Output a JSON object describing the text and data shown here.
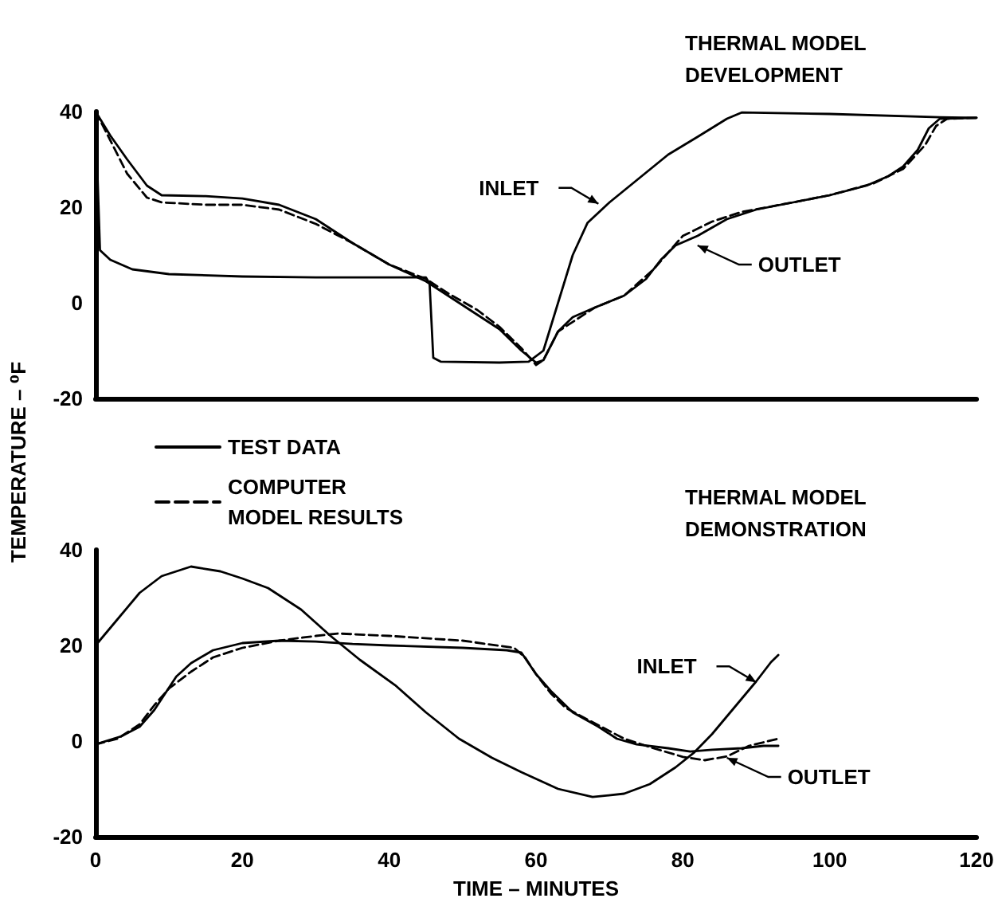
{
  "chart_data": [
    {
      "type": "line",
      "title": "THERMAL MODEL DEVELOPMENT",
      "xlim": [
        0,
        120
      ],
      "xticks": [
        0,
        20,
        40,
        60,
        80,
        100,
        120
      ],
      "ylim": [
        -20,
        40
      ],
      "yticks": [
        -20,
        0,
        20,
        40
      ],
      "tick_labels": "y",
      "grid": false,
      "legend": false,
      "marker": "none",
      "annotations": [
        {
          "text": "INLET",
          "x": 68.5,
          "y": 20.7
        },
        {
          "text": "OUTLET",
          "x": 82,
          "y": 12
        }
      ],
      "series": [
        {
          "color": "#000000",
          "line_style": "solid",
          "x": [
            0,
            0.3,
            0.6,
            2,
            5,
            10,
            20,
            30,
            45,
            45.5,
            46,
            47,
            55,
            59,
            61,
            63,
            65,
            67,
            70,
            74,
            78,
            82,
            86,
            88,
            100,
            115,
            120
          ],
          "values": [
            40,
            25,
            11,
            9,
            7,
            6,
            5.5,
            5.3,
            5.3,
            4,
            -11.5,
            -12.3,
            -12.5,
            -12.3,
            -10,
            0,
            10,
            16.7,
            21,
            26,
            31,
            34.7,
            38.5,
            39.8,
            39.5,
            38.8,
            38.7
          ]
        },
        {
          "color": "#000000",
          "line_style": "solid",
          "x": [
            0,
            2,
            4.3,
            7,
            9,
            15,
            20,
            25,
            30,
            35,
            40,
            45,
            48,
            52,
            55,
            58,
            60,
            61,
            63,
            65,
            68,
            72,
            75,
            77,
            79,
            82,
            86,
            90,
            95,
            100,
            105,
            108,
            110,
            112,
            113.5,
            115,
            120
          ],
          "values": [
            40,
            35,
            30,
            24.5,
            22.5,
            22.3,
            21.8,
            20.5,
            17.5,
            12.5,
            8,
            4.5,
            1.5,
            -2.5,
            -5.5,
            -10,
            -12.5,
            -12,
            -6,
            -3,
            -1,
            1.5,
            5,
            9,
            12,
            14,
            17.5,
            19.5,
            21,
            22.5,
            24.5,
            26.5,
            28.5,
            32,
            36.5,
            38.5,
            38.7
          ]
        },
        {
          "color": "#000000",
          "line_style": "dashed",
          "x": [
            0,
            2,
            4.3,
            7,
            9,
            15,
            20,
            25,
            30,
            35,
            40,
            45,
            48,
            52,
            55,
            58,
            60,
            61,
            63,
            68,
            72,
            76,
            80,
            84,
            88,
            95,
            100,
            106,
            110,
            113,
            114.5,
            116,
            120
          ],
          "values": [
            40,
            34,
            27,
            22,
            21,
            20.5,
            20.5,
            19.5,
            16.5,
            12.5,
            8,
            5,
            2,
            -1.5,
            -5,
            -9.5,
            -13,
            -12,
            -6,
            -1,
            1.5,
            7,
            14,
            17,
            19,
            21,
            22.5,
            25,
            28,
            33,
            37,
            38.5,
            38.7
          ]
        }
      ]
    },
    {
      "type": "line",
      "title": "THERMAL MODEL DEMONSTRATION",
      "xlabel": "TIME – MINUTES",
      "ylabel": "TEMPERATURE – ⁰F",
      "xlim": [
        0,
        120
      ],
      "xticks": [
        0,
        20,
        40,
        60,
        80,
        100,
        120
      ],
      "ylim": [
        -20,
        40
      ],
      "yticks": [
        -20,
        0,
        20,
        40
      ],
      "grid": false,
      "legend": "top left",
      "marker": "none",
      "annotations": [
        {
          "text": "INLET",
          "x": 90,
          "y": 12.3
        },
        {
          "text": "OUTLET",
          "x": 86,
          "y": -3.5
        }
      ],
      "series": [
        {
          "color": "#000000",
          "line_style": "solid",
          "x": [
            0,
            3,
            6,
            9,
            13,
            17,
            20,
            23.5,
            28,
            32,
            36,
            40.8,
            45,
            49.5,
            54,
            58,
            63,
            67.7,
            72,
            75.5,
            79,
            81.6,
            84,
            87,
            90,
            92,
            93
          ],
          "values": [
            20,
            25.5,
            31,
            34.5,
            36.5,
            35.5,
            34,
            32,
            27.5,
            22,
            17,
            11.7,
            6,
            0.5,
            -3.5,
            -6.5,
            -10,
            -11.7,
            -11,
            -9,
            -5.5,
            -2.3,
            1.5,
            7,
            12.5,
            16.5,
            18
          ]
        },
        {
          "name": "TEST DATA",
          "color": "#000000",
          "line_style": "solid",
          "x": [
            0,
            3.5,
            6,
            8,
            9.5,
            11,
            13,
            16,
            20,
            25,
            30,
            35,
            40,
            50,
            56,
            58,
            60,
            62,
            65,
            68.5,
            71,
            73.7,
            78,
            81,
            84,
            88,
            91,
            93
          ],
          "values": [
            -0.7,
            1,
            3,
            6.5,
            10,
            13.5,
            16.3,
            19,
            20.5,
            21,
            20.8,
            20.3,
            20,
            19.5,
            19,
            18.5,
            14,
            10.5,
            6,
            3,
            0.5,
            -0.7,
            -1.5,
            -2.2,
            -1.8,
            -1.5,
            -1,
            -1
          ]
        },
        {
          "name": "COMPUTER MODEL RESULTS",
          "color": "#000000",
          "line_style": "dashed",
          "x": [
            0,
            3,
            6,
            8,
            10,
            13,
            16,
            20,
            25,
            30,
            33,
            40,
            50,
            57,
            58.5,
            60,
            62,
            64,
            67,
            72,
            76,
            80,
            83,
            86,
            89,
            93
          ],
          "values": [
            -0.7,
            0.5,
            3.5,
            7.5,
            11,
            14.5,
            17.5,
            19.5,
            21,
            22,
            22.5,
            22,
            21,
            19.5,
            17.5,
            14,
            10,
            7,
            4.5,
            0.5,
            -1.5,
            -3.3,
            -4,
            -3.2,
            -1,
            0.5
          ]
        }
      ]
    }
  ]
}
